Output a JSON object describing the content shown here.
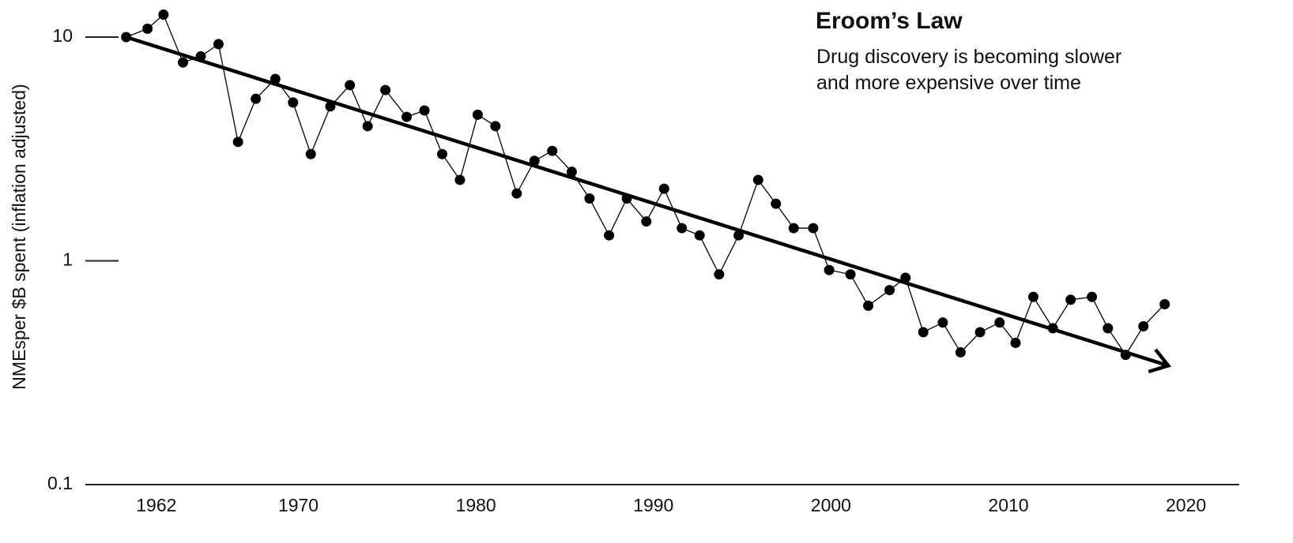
{
  "chart_data": {
    "type": "line",
    "title": "Eroom’s Law",
    "subtitle": "Drug discovery is becoming slower and more expensive over time",
    "y_label": "NMEsper $B spent (inflation adjusted)",
    "log_scale_y": true,
    "xlim": [
      1958,
      2023
    ],
    "xticks": [
      1962,
      1970,
      1980,
      1990,
      2000,
      2010,
      2020
    ],
    "ylim": [
      0.1,
      14
    ],
    "yticks": [
      10,
      1,
      0.1
    ],
    "series": [
      {
        "color": "#000000",
        "x": [
          1960.3,
          1961.5,
          1962.4,
          1963.5,
          1964.5,
          1965.5,
          1966.6,
          1967.6,
          1968.7,
          1969.7,
          1970.7,
          1971.8,
          1972.9,
          1973.9,
          1974.9,
          1976.1,
          1977.1,
          1978.1,
          1979.1,
          1980.1,
          1981.1,
          1982.3,
          1983.3,
          1984.3,
          1985.4,
          1986.4,
          1987.5,
          1988.5,
          1989.6,
          1990.6,
          1991.6,
          1992.6,
          1993.7,
          1994.8,
          1995.9,
          1996.9,
          1997.9,
          1999.0,
          1999.9,
          2001.1,
          2002.1,
          2003.3,
          2004.2,
          2005.2,
          2006.3,
          2007.3,
          2008.4,
          2009.5,
          2010.4,
          2011.4,
          2012.5,
          2013.5,
          2014.7,
          2015.6,
          2016.6,
          2017.6,
          2018.8
        ],
        "values": [
          10,
          10.9,
          12.6,
          7.7,
          8.2,
          9.3,
          3.4,
          5.3,
          6.5,
          5.1,
          3.0,
          4.9,
          6.1,
          4.0,
          5.8,
          4.4,
          4.7,
          3.0,
          2.3,
          4.5,
          4.0,
          2.0,
          2.8,
          3.1,
          2.5,
          1.9,
          1.3,
          1.9,
          1.5,
          2.1,
          1.4,
          1.3,
          0.87,
          1.3,
          2.3,
          1.8,
          1.4,
          1.4,
          0.91,
          0.87,
          0.63,
          0.74,
          0.84,
          0.48,
          0.53,
          0.39,
          0.48,
          0.53,
          0.43,
          0.69,
          0.5,
          0.67,
          0.69,
          0.5,
          0.38,
          0.51,
          0.64
        ]
      }
    ],
    "trend_line": {
      "x": [
        1960.3,
        2019.0
      ],
      "values": [
        10,
        0.34
      ]
    }
  }
}
